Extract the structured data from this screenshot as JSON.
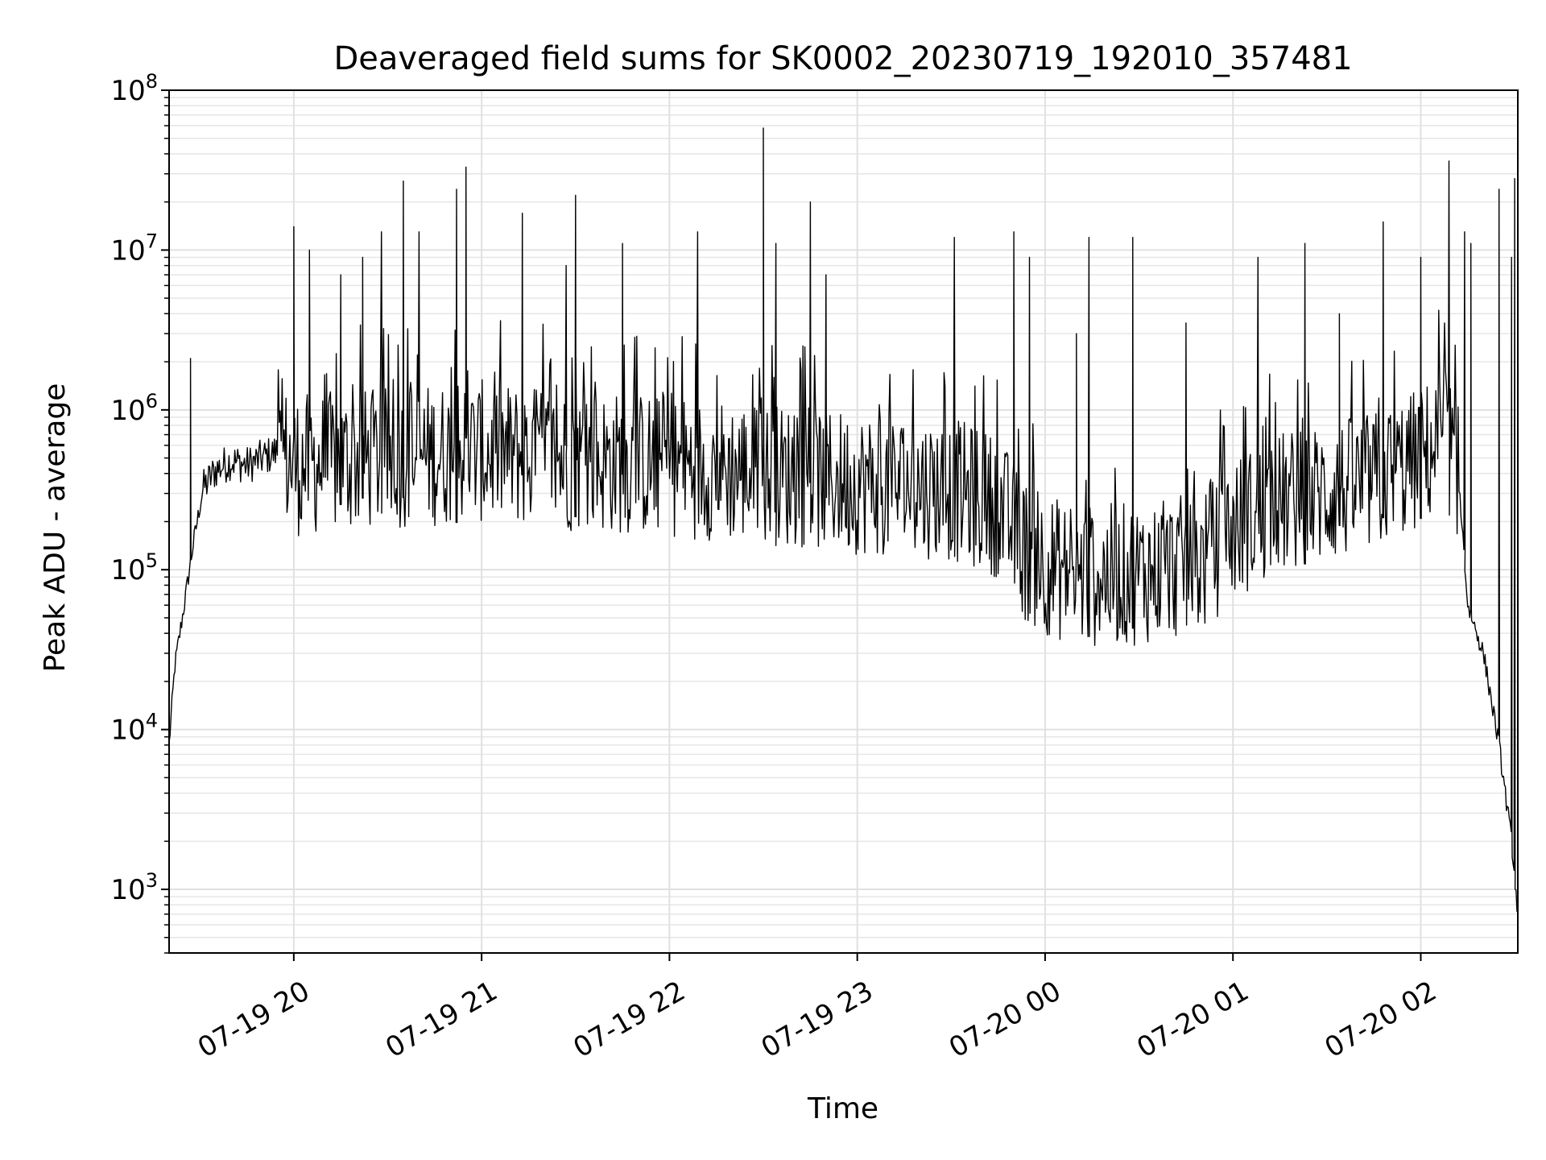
{
  "chart_data": {
    "type": "line",
    "title": "Deaveraged field sums for SK0002_20230719_192010_357481",
    "xlabel": "Time",
    "ylabel": "Peak ADU - average",
    "y_scale": "log",
    "ylim": [
      400,
      100000000
    ],
    "xlim": [
      "2023-07-19 19:20:10",
      "2023-07-20 02:31:00"
    ],
    "grid": true,
    "grid_minor": true,
    "line_color": "#000000",
    "y_ticks": [
      {
        "value": 1000,
        "base": "10",
        "exp": "3"
      },
      {
        "value": 10000,
        "base": "10",
        "exp": "4"
      },
      {
        "value": 100000,
        "base": "10",
        "exp": "5"
      },
      {
        "value": 1000000,
        "base": "10",
        "exp": "6"
      },
      {
        "value": 10000000,
        "base": "10",
        "exp": "7"
      },
      {
        "value": 100000000,
        "base": "10",
        "exp": "8"
      }
    ],
    "x_ticks": [
      {
        "time": "2023-07-19 20:00",
        "label": "07-19 20"
      },
      {
        "time": "2023-07-19 21:00",
        "label": "07-19 21"
      },
      {
        "time": "2023-07-19 22:00",
        "label": "07-19 22"
      },
      {
        "time": "2023-07-19 23:00",
        "label": "07-19 23"
      },
      {
        "time": "2023-07-20 00:00",
        "label": "07-20 00"
      },
      {
        "time": "2023-07-20 01:00",
        "label": "07-20 01"
      },
      {
        "time": "2023-07-20 02:00",
        "label": "07-20 02"
      }
    ],
    "series": [
      {
        "points": [
          {
            "t": "2023-07-19 19:20:10",
            "y": 8000
          },
          {
            "t": "2023-07-19 19:22",
            "y": 25000
          },
          {
            "t": "2023-07-19 19:25",
            "y": 60000
          },
          {
            "t": "2023-07-19 19:28",
            "y": 150000
          },
          {
            "t": "2023-07-19 19:31",
            "y": 320000
          },
          {
            "t": "2023-07-19 19:35",
            "y": 420000
          },
          {
            "t": "2023-07-19 19:40",
            "y": 480000
          },
          {
            "t": "2023-07-19 19:45",
            "y": 450000
          },
          {
            "t": "2023-07-19 19:50",
            "y": 500000
          },
          {
            "t": "2023-07-19 19:55",
            "y": 550000
          },
          {
            "t": "2023-07-19 20:00",
            "y": 450000
          },
          {
            "t": "2023-07-19 20:30",
            "y": 500000
          },
          {
            "t": "2023-07-19 21:00",
            "y": 550000
          },
          {
            "t": "2023-07-19 21:30",
            "y": 480000
          },
          {
            "t": "2023-07-19 22:00",
            "y": 450000
          },
          {
            "t": "2023-07-19 22:30",
            "y": 400000
          },
          {
            "t": "2023-07-19 23:00",
            "y": 350000
          },
          {
            "t": "2023-07-19 23:30",
            "y": 320000
          },
          {
            "t": "2023-07-19 23:45",
            "y": 250000
          },
          {
            "t": "2023-07-19 23:55",
            "y": 120000
          },
          {
            "t": "2023-07-20 00:10",
            "y": 90000
          },
          {
            "t": "2023-07-20 00:30",
            "y": 95000
          },
          {
            "t": "2023-07-20 00:50",
            "y": 110000
          },
          {
            "t": "2023-07-20 01:00",
            "y": 180000
          },
          {
            "t": "2023-07-20 01:15",
            "y": 260000
          },
          {
            "t": "2023-07-20 01:30",
            "y": 300000
          },
          {
            "t": "2023-07-20 01:45",
            "y": 350000
          },
          {
            "t": "2023-07-20 02:00",
            "y": 500000
          },
          {
            "t": "2023-07-20 02:05",
            "y": 600000
          },
          {
            "t": "2023-07-20 02:08",
            "y": 700000
          },
          {
            "t": "2023-07-20 02:12",
            "y": 400000
          },
          {
            "t": "2023-07-20 02:15",
            "y": 60000
          },
          {
            "t": "2023-07-20 02:20",
            "y": 30000
          },
          {
            "t": "2023-07-20 02:25",
            "y": 8000
          },
          {
            "t": "2023-07-20 02:29",
            "y": 2000
          },
          {
            "t": "2023-07-20 02:31",
            "y": 700
          }
        ],
        "spikes": [
          {
            "t": "2023-07-19 19:27",
            "y": 2100000
          },
          {
            "t": "2023-07-19 20:00",
            "y": 14000000
          },
          {
            "t": "2023-07-19 20:05",
            "y": 10000000
          },
          {
            "t": "2023-07-19 20:15",
            "y": 7000000
          },
          {
            "t": "2023-07-19 20:22",
            "y": 9000000
          },
          {
            "t": "2023-07-19 20:28",
            "y": 13000000
          },
          {
            "t": "2023-07-19 20:35",
            "y": 27000000
          },
          {
            "t": "2023-07-19 20:40",
            "y": 13000000
          },
          {
            "t": "2023-07-19 20:52",
            "y": 24000000
          },
          {
            "t": "2023-07-19 20:55",
            "y": 33000000
          },
          {
            "t": "2023-07-19 21:13",
            "y": 17000000
          },
          {
            "t": "2023-07-19 21:27",
            "y": 8000000
          },
          {
            "t": "2023-07-19 21:30",
            "y": 22000000
          },
          {
            "t": "2023-07-19 21:45",
            "y": 11000000
          },
          {
            "t": "2023-07-19 22:09",
            "y": 13000000
          },
          {
            "t": "2023-07-19 22:30",
            "y": 58000000
          },
          {
            "t": "2023-07-19 22:34",
            "y": 11000000
          },
          {
            "t": "2023-07-19 22:45",
            "y": 20000000
          },
          {
            "t": "2023-07-19 22:50",
            "y": 7000000
          },
          {
            "t": "2023-07-19 23:31",
            "y": 12000000
          },
          {
            "t": "2023-07-19 23:50",
            "y": 13000000
          },
          {
            "t": "2023-07-19 23:55",
            "y": 9000000
          },
          {
            "t": "2023-07-20 00:10",
            "y": 3000000
          },
          {
            "t": "2023-07-20 00:14",
            "y": 12000000
          },
          {
            "t": "2023-07-20 00:28",
            "y": 12000000
          },
          {
            "t": "2023-07-20 00:45",
            "y": 3500000
          },
          {
            "t": "2023-07-20 01:08",
            "y": 9000000
          },
          {
            "t": "2023-07-20 01:23",
            "y": 11000000
          },
          {
            "t": "2023-07-20 01:34",
            "y": 4000000
          },
          {
            "t": "2023-07-20 01:48",
            "y": 15000000
          },
          {
            "t": "2023-07-20 02:00",
            "y": 9000000
          },
          {
            "t": "2023-07-20 02:09",
            "y": 36000000
          },
          {
            "t": "2023-07-20 02:14",
            "y": 13000000
          },
          {
            "t": "2023-07-20 02:16",
            "y": 11000000
          },
          {
            "t": "2023-07-20 02:25",
            "y": 24000000
          },
          {
            "t": "2023-07-20 02:29",
            "y": 9000000
          },
          {
            "t": "2023-07-20 02:30",
            "y": 28000000
          }
        ]
      }
    ]
  }
}
